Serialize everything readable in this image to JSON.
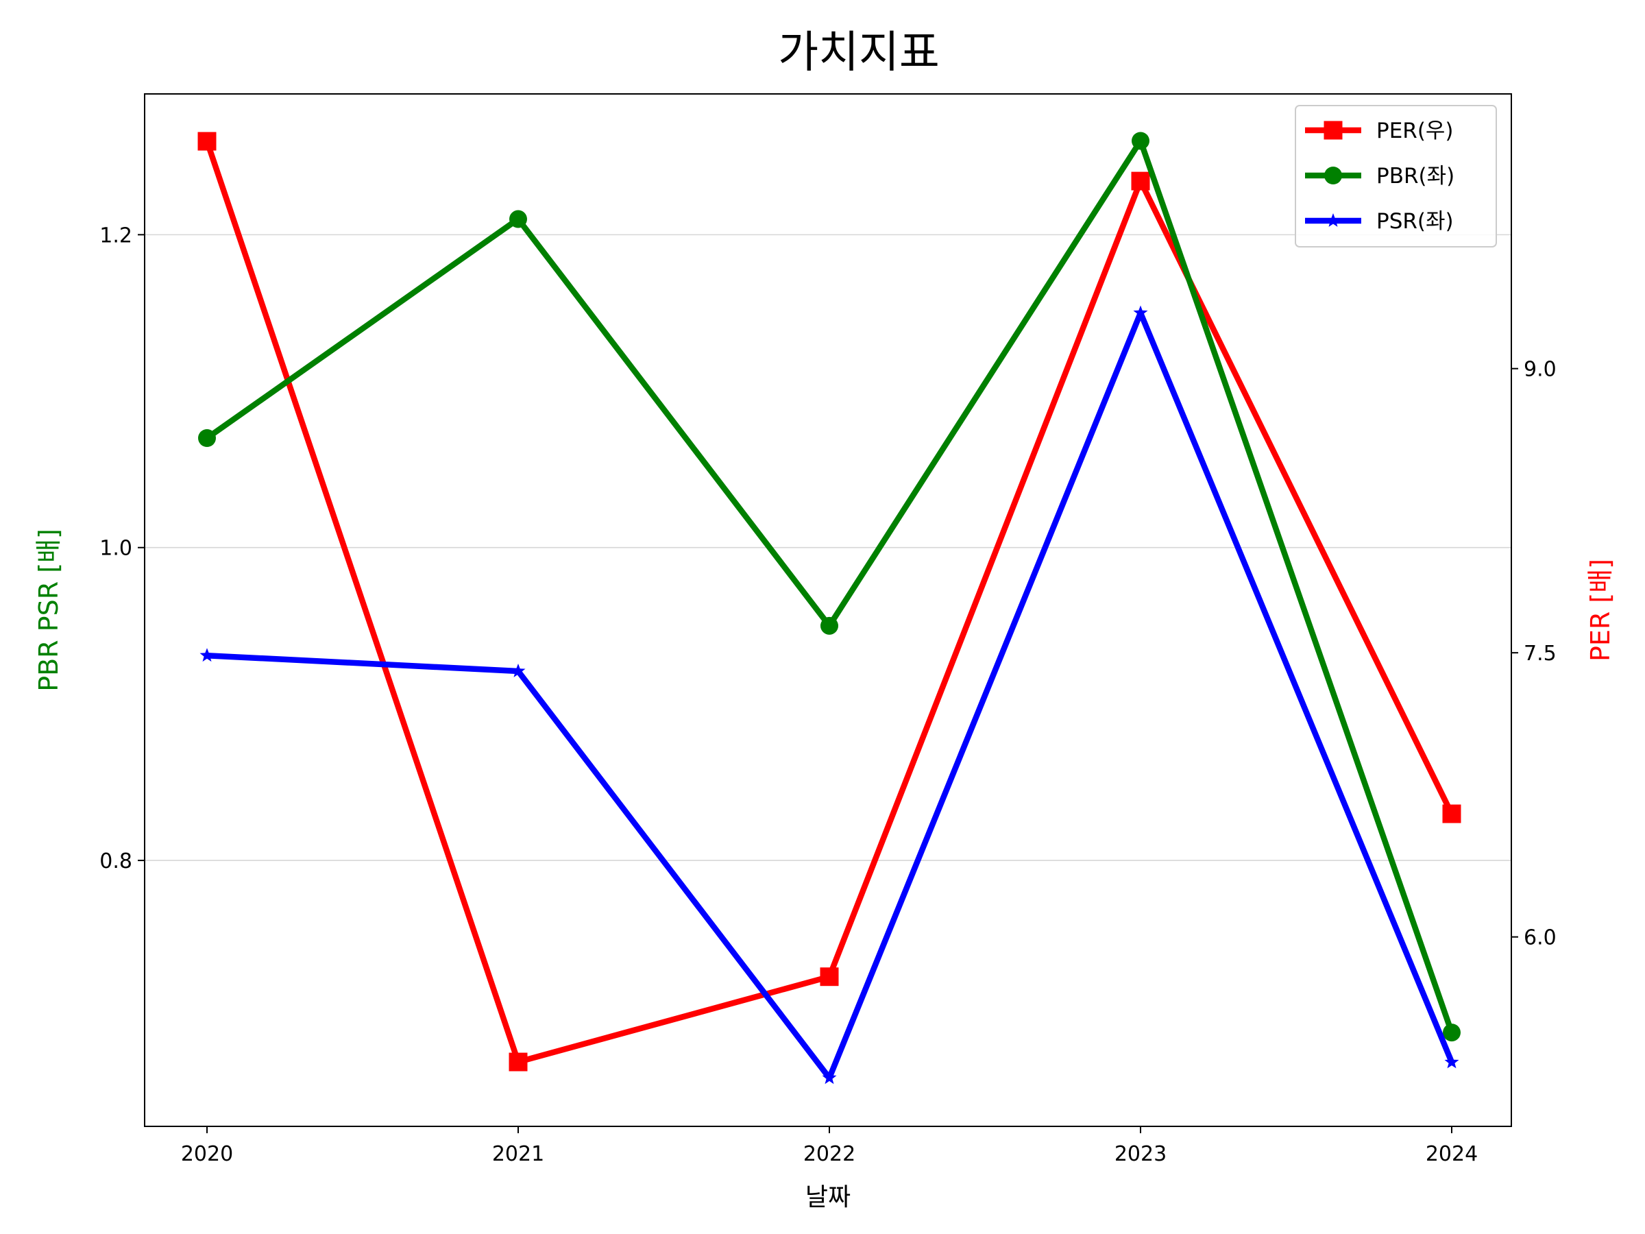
{
  "chart_data": {
    "type": "line",
    "title": "가치지표",
    "xlabel": "날짜",
    "ylabel_left": "PBR PSR [배]",
    "ylabel_right": "PER [배]",
    "categories": [
      "2020",
      "2021",
      "2022",
      "2023",
      "2024"
    ],
    "y_left": {
      "lim": [
        0.63,
        1.29
      ],
      "ticks": [
        0.8,
        1.0,
        1.2
      ],
      "tick_labels": [
        "0.8",
        "1.0",
        "1.2"
      ]
    },
    "y_right": {
      "lim": [
        5.0,
        10.45
      ],
      "ticks": [
        6.0,
        7.5,
        9.0
      ],
      "tick_labels": [
        "6.0",
        "7.5",
        "9.0"
      ]
    },
    "grid": "horizontal-left",
    "legend_position": "top-right",
    "series": [
      {
        "name": "PER(우)",
        "axis": "right",
        "color": "#ff0000",
        "marker": "square",
        "values": [
          10.2,
          5.34,
          5.79,
          9.99,
          6.65
        ]
      },
      {
        "name": "PBR(좌)",
        "axis": "left",
        "color": "#008000",
        "marker": "circle",
        "values": [
          1.07,
          1.21,
          0.95,
          1.26,
          0.69
        ]
      },
      {
        "name": "PSR(좌)",
        "axis": "left",
        "color": "#0000ff",
        "marker": "star",
        "values": [
          0.931,
          0.921,
          0.661,
          1.15,
          0.671
        ]
      }
    ]
  }
}
